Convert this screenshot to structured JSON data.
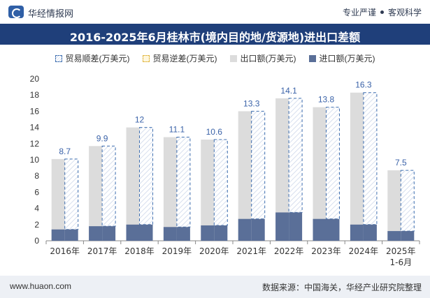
{
  "header": {
    "brand": "华经情报网",
    "tag1": "专业严谨",
    "tag2": "客观科学",
    "logo_icon": "huajing-logo-icon"
  },
  "title": "2016-2025年6月桂林市(境内目的地/货源地)进出口差额",
  "legend": {
    "surplus": "贸易顺差(万美元)",
    "deficit": "贸易逆差(万美元)",
    "exports": "出口额(万美元)",
    "imports": "进口额(万美元)"
  },
  "colors": {
    "title_bg": "#1f3f7a",
    "export_bar": "#dcdcdc",
    "import_bar": "#5a6f98",
    "surplus_border": "#3f6fb0",
    "label": "#3a62a8"
  },
  "chart_data": {
    "type": "bar",
    "categories": [
      "2016年",
      "2017年",
      "2018年",
      "2019年",
      "2020年",
      "2021年",
      "2022年",
      "2023年",
      "2024年",
      "2025年\n1-6月"
    ],
    "series": [
      {
        "name": "出口额(万美元)",
        "values": [
          10.1,
          11.7,
          14.0,
          12.8,
          12.5,
          16.0,
          17.6,
          16.5,
          18.3,
          8.7
        ]
      },
      {
        "name": "进口额(万美元)",
        "values": [
          1.4,
          1.8,
          2.0,
          1.7,
          1.9,
          2.7,
          3.5,
          2.7,
          2.0,
          1.2
        ]
      },
      {
        "name": "贸易顺差(万美元)",
        "values": [
          8.7,
          9.9,
          12,
          11.1,
          10.6,
          13.3,
          14.1,
          13.8,
          16.3,
          7.5
        ]
      }
    ],
    "surplus_labels": [
      "8.7",
      "9.9",
      "12",
      "11.1",
      "10.6",
      "13.3",
      "14.1",
      "13.8",
      "16.3",
      "7.5"
    ],
    "ylim": [
      0,
      20
    ],
    "yticks": [
      0,
      2,
      4,
      6,
      8,
      10,
      12,
      14,
      16,
      18,
      20
    ],
    "grid": false,
    "legend_position": "top-center"
  },
  "footer": {
    "site": "www.huaon.com",
    "source": "数据来源：中国海关，华经产业研究院整理"
  }
}
